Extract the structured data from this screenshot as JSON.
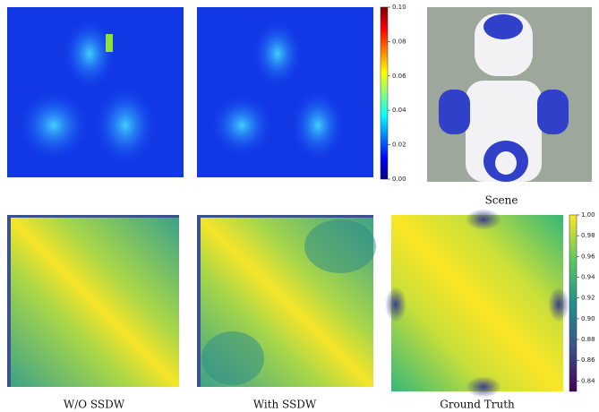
{
  "panels": {
    "scene_caption": "Scene",
    "captions": [
      "W/O SSDW",
      "With SSDW",
      "Ground Truth"
    ]
  },
  "error_colorbar": {
    "lim": [
      0,
      0.1
    ],
    "ticks": [
      {
        "value": 0.1,
        "label": "0.10"
      },
      {
        "value": 0.08,
        "label": "0.08"
      },
      {
        "value": 0.06,
        "label": "0.06"
      },
      {
        "value": 0.04,
        "label": "0.04"
      },
      {
        "value": 0.02,
        "label": "0.02"
      },
      {
        "value": 0,
        "label": "0.00"
      }
    ]
  },
  "similarity_colorbar": {
    "lim": [
      0.83,
      1.0
    ],
    "ticks": [
      {
        "value": 1.0,
        "label": "1.00"
      },
      0.98,
      0.96,
      0.94,
      0.92,
      {
        "value": 0.9,
        "label": "0.90"
      },
      0.88,
      0.86,
      0.84
    ]
  }
}
